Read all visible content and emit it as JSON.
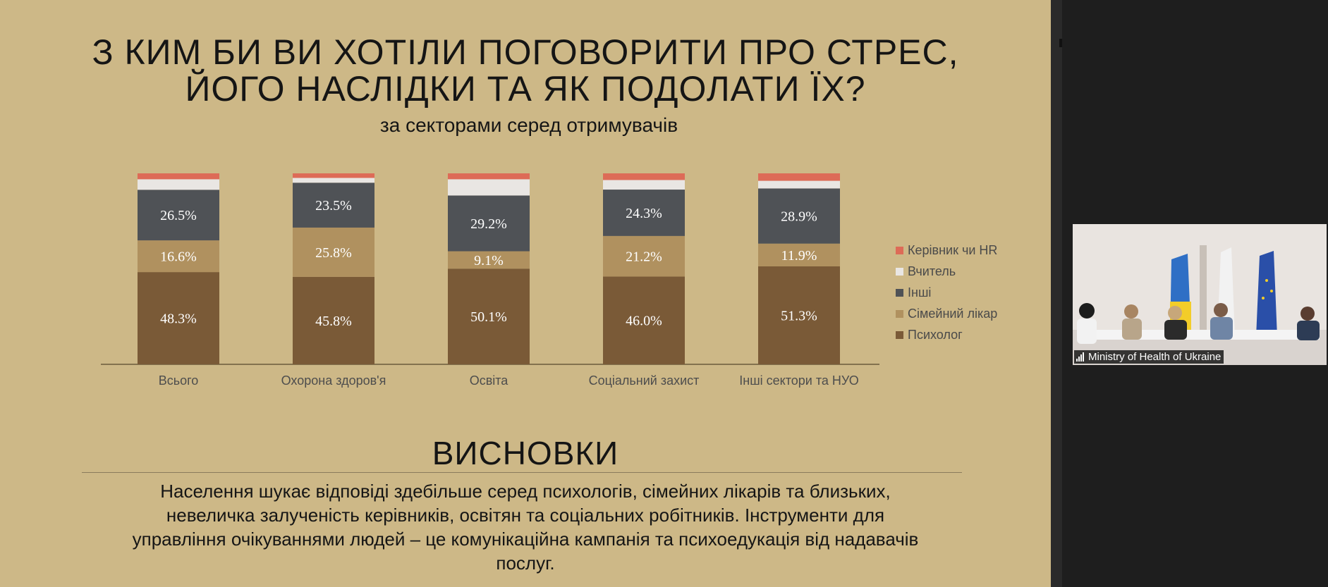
{
  "slide": {
    "title_lines": [
      "З КИМ БИ ВИ ХОТІЛИ ПОГОВОРИТИ ПРО СТРЕС,",
      "ЙОГО НАСЛІДКИ ТА ЯК ПОДОЛАТИ ЇХ?"
    ],
    "subtitle": "за секторами серед отримувачів",
    "conclusions_title": "ВИСНОВКИ",
    "conclusions_lines": [
      "Населення шукає відповіді здебільше серед психологів, сімейних лікарів та близьких,",
      "невеличка залученість керівників, освітян та соціальних робітників. Інструменти для",
      "управління очікуваннями людей – це комунікаційна кампанія та психоедукація від надавачів",
      "послуг."
    ],
    "background_color": "#cdb887"
  },
  "chart_data": {
    "type": "bar",
    "stacked": true,
    "normalized": true,
    "categories": [
      "Всього",
      "Охорона здоров'я",
      "Освіта",
      "Соціальний захист",
      "Інші сектори та НУО"
    ],
    "series": [
      {
        "name": "Психолог",
        "color": "#7a5a37",
        "values": [
          48.3,
          45.8,
          50.1,
          46.0,
          51.3
        ],
        "labels": [
          "48.3%",
          "45.8%",
          "50.1%",
          "46.0%",
          "51.3%"
        ]
      },
      {
        "name": "Сімейний лікар",
        "color": "#b0915f",
        "values": [
          16.6,
          25.8,
          9.1,
          21.2,
          11.9
        ],
        "labels": [
          "16.6%",
          "25.8%",
          "9.1%",
          "21.2%",
          "11.9%"
        ]
      },
      {
        "name": "Інші",
        "color": "#4f5256",
        "values": [
          26.5,
          23.5,
          29.2,
          24.3,
          28.9
        ],
        "labels": [
          "26.5%",
          "23.5%",
          "29.2%",
          "24.3%",
          "28.9%"
        ]
      },
      {
        "name": "Вчитель",
        "color": "#e9e6e3",
        "values": [
          5.5,
          2.5,
          8.5,
          5.0,
          4.0
        ],
        "labels": []
      },
      {
        "name": "Керівник чи HR",
        "color": "#dd6b57",
        "values": [
          3.1,
          2.4,
          3.1,
          3.5,
          3.9
        ],
        "labels": []
      }
    ],
    "legend_position": "right",
    "legend_order": [
      "Керівник чи HR",
      "Вчитель",
      "Інші",
      "Сімейний лікар",
      "Психолог"
    ],
    "ylim": [
      0,
      100
    ],
    "grid": false
  },
  "video": {
    "label": "Ministry of Health of Ukraine",
    "icon": "signal-bars-icon"
  }
}
